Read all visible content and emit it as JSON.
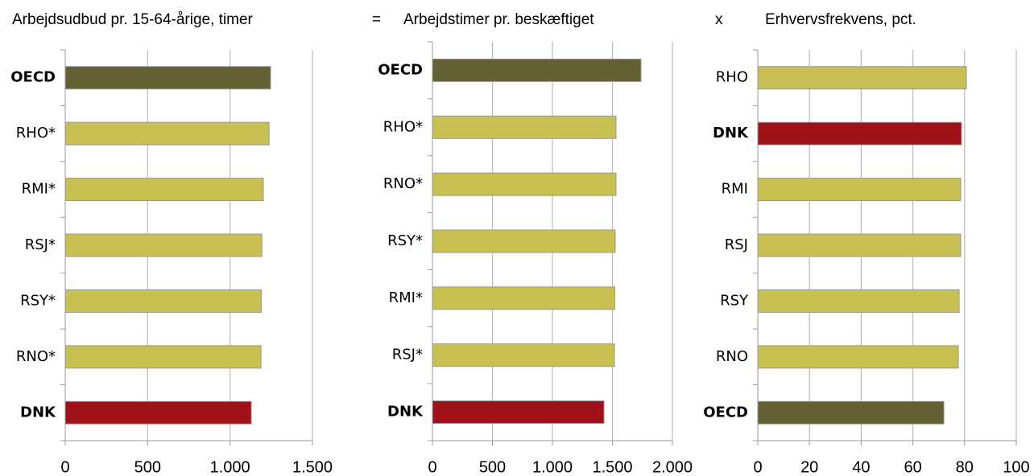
{
  "chart_data": [
    {
      "type": "bar",
      "orientation": "horizontal",
      "title": "Arbejdsudbud pr. 15-64-årige, timer",
      "categories": [
        "OECD",
        "RHO*",
        "RMI*",
        "RSJ*",
        "RSY*",
        "RNO*",
        "DNK"
      ],
      "values": [
        1246,
        1237,
        1202,
        1193,
        1190,
        1188,
        1129
      ],
      "colors": [
        "#636032",
        "#c8c050",
        "#c8c050",
        "#c8c050",
        "#c8c050",
        "#c8c050",
        "#a01218"
      ],
      "xlim": [
        0,
        1500
      ],
      "xticks": [
        0,
        500,
        {
          "value": 1000,
          "label": "1.000"
        },
        {
          "value": 1500,
          "label": "1.500"
        }
      ],
      "grid": true
    },
    {
      "type": "bar",
      "orientation": "horizontal",
      "title": "Arbejdstimer pr. beskæftiget",
      "annotation": "=",
      "categories": [
        "OECD",
        "RHO*",
        "RNO*",
        "RSY*",
        "RMI*",
        "RSJ*",
        "DNK"
      ],
      "values": [
        1738,
        1530,
        1530,
        1523,
        1520,
        1517,
        1430
      ],
      "colors": [
        "#636032",
        "#c8c050",
        "#c8c050",
        "#c8c050",
        "#c8c050",
        "#c8c050",
        "#a01218"
      ],
      "xlim": [
        0,
        2000
      ],
      "xticks": [
        0,
        500,
        {
          "value": 1000,
          "label": "1.000"
        },
        {
          "value": 1500,
          "label": "1.500"
        },
        {
          "value": 2000,
          "label": "2.000"
        }
      ],
      "grid": true
    },
    {
      "type": "bar",
      "orientation": "horizontal",
      "title": "Erhvervsfrekvens, pct.",
      "annotation": "x",
      "categories": [
        "RHO",
        "DNK",
        "RMI",
        "RSJ",
        "RSY",
        "RNO",
        "OECD"
      ],
      "values": [
        80.7,
        78.8,
        78.5,
        78.5,
        77.9,
        77.6,
        72
      ],
      "colors": [
        "#c8c050",
        "#a01218",
        "#c8c050",
        "#c8c050",
        "#c8c050",
        "#c8c050",
        "#636032"
      ],
      "xlim": [
        0,
        100
      ],
      "xticks": [
        0,
        20,
        40,
        60,
        80,
        100
      ],
      "grid": true
    }
  ]
}
